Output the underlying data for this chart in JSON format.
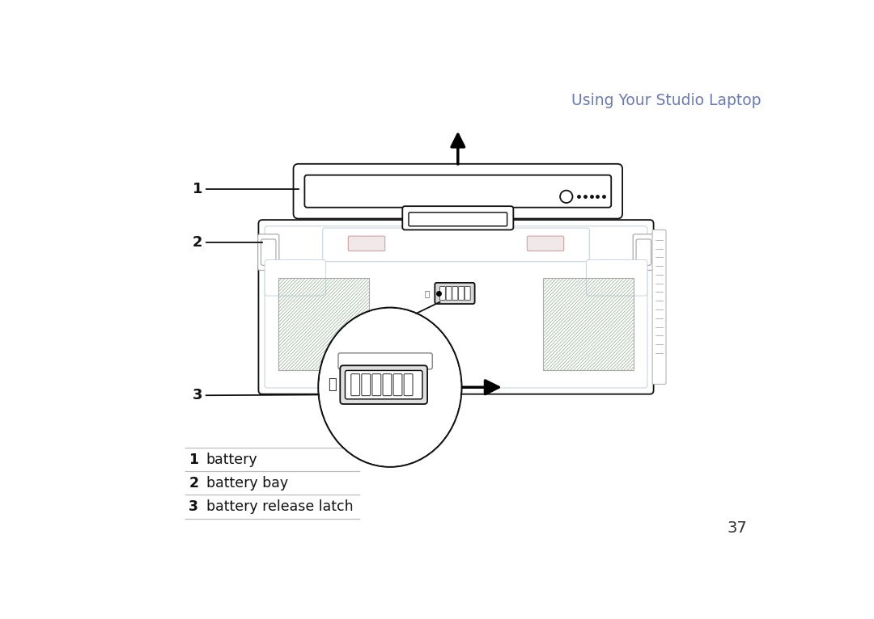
{
  "title": "Using Your Studio Laptop",
  "title_color": "#6b7ab5",
  "bg_color": "#ffffff",
  "label1": "1",
  "label2": "2",
  "label3": "3",
  "text1": "battery",
  "text2": "battery bay",
  "text3": "battery release latch",
  "page_number": "37",
  "line_color": "#111111",
  "light_line_color": "#c8d4e0",
  "vent_color": "#d8e8d8",
  "vent_line_color": "#aabcaa"
}
